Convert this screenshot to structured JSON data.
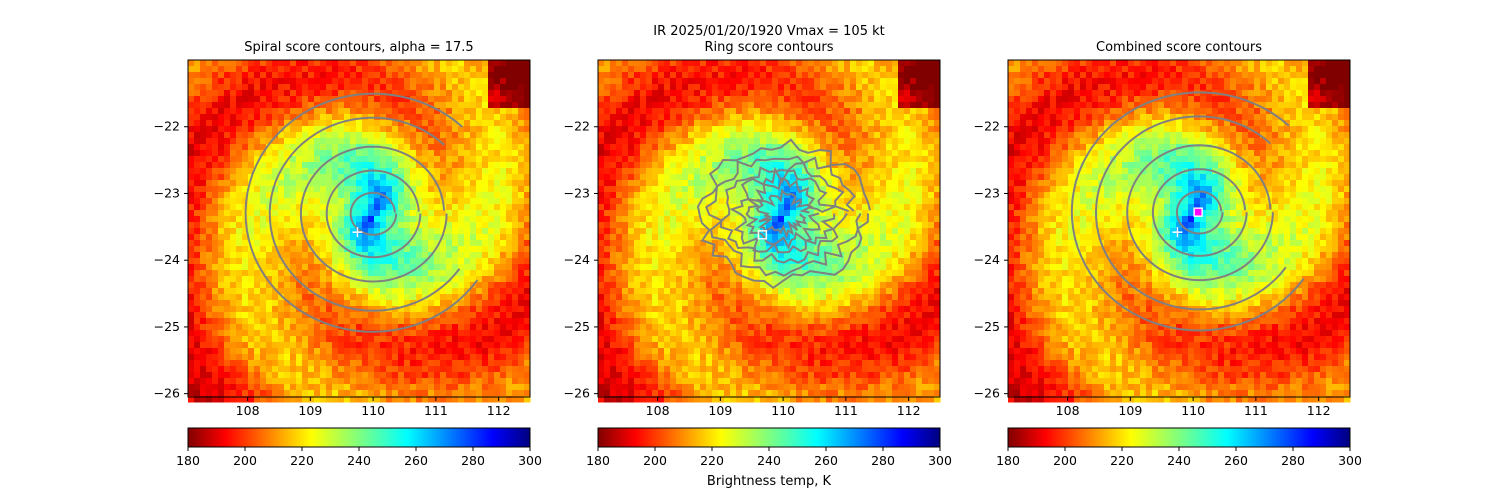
{
  "suptitle": {
    "line1": "IR  2025/01/20/1920    Vmax = 105 kt"
  },
  "colorbar_label": "Brightness temp, K",
  "colors": {
    "contour": "#808080",
    "marker_white": "#ffffff",
    "marker_magenta": "#ff00ff"
  },
  "chart_data": [
    {
      "type": "heatmap",
      "title": "Spiral score contours, alpha = 17.5",
      "colormap": "jet_r",
      "xlim": [
        107.05,
        112.5
      ],
      "ylim": [
        -26.05,
        -21.0
      ],
      "xticks": [
        "108",
        "109",
        "110",
        "111",
        "112"
      ],
      "yticks": [
        "−22",
        "−23",
        "−24",
        "−25",
        "−26"
      ],
      "colorbar": {
        "ticks": [
          "180",
          "200",
          "220",
          "240",
          "260",
          "280",
          "300"
        ],
        "range": [
          180,
          300
        ]
      },
      "cold_center": [
        110.0,
        -23.3
      ],
      "markers": [
        {
          "shape": "plus",
          "color": "white",
          "lon": 109.75,
          "lat": -23.58
        }
      ],
      "contour_center": [
        110.0,
        -23.3
      ],
      "contour_style": "spiral"
    },
    {
      "type": "heatmap",
      "title": "Ring score contours",
      "colormap": "jet_r",
      "xlim": [
        107.05,
        112.5
      ],
      "ylim": [
        -26.05,
        -21.0
      ],
      "xticks": [
        "108",
        "109",
        "110",
        "111",
        "112"
      ],
      "yticks": [
        "−22",
        "−23",
        "−24",
        "−25",
        "−26"
      ],
      "colorbar": {
        "ticks": [
          "180",
          "200",
          "220",
          "240",
          "260",
          "280",
          "300"
        ],
        "range": [
          180,
          300
        ]
      },
      "cold_center": [
        110.0,
        -23.3
      ],
      "markers": [
        {
          "shape": "square",
          "color": "white",
          "lon": 109.67,
          "lat": -23.62
        }
      ],
      "contour_center": [
        110.0,
        -23.3
      ],
      "contour_style": "noisy"
    },
    {
      "type": "heatmap",
      "title": "Combined score contours",
      "colormap": "jet_r",
      "xlim": [
        107.05,
        112.5
      ],
      "ylim": [
        -26.05,
        -21.0
      ],
      "xticks": [
        "108",
        "109",
        "110",
        "111",
        "112"
      ],
      "yticks": [
        "−22",
        "−23",
        "−24",
        "−25",
        "−26"
      ],
      "colorbar": {
        "ticks": [
          "180",
          "200",
          "220",
          "240",
          "260",
          "280",
          "300"
        ],
        "range": [
          180,
          300
        ]
      },
      "cold_center": [
        110.0,
        -23.3
      ],
      "markers": [
        {
          "shape": "plus",
          "color": "white",
          "lon": 109.75,
          "lat": -23.58
        },
        {
          "shape": "square",
          "color": "magenta",
          "lon": 110.08,
          "lat": -23.28
        }
      ],
      "contour_center": [
        110.1,
        -23.28
      ],
      "contour_style": "spiral"
    }
  ]
}
